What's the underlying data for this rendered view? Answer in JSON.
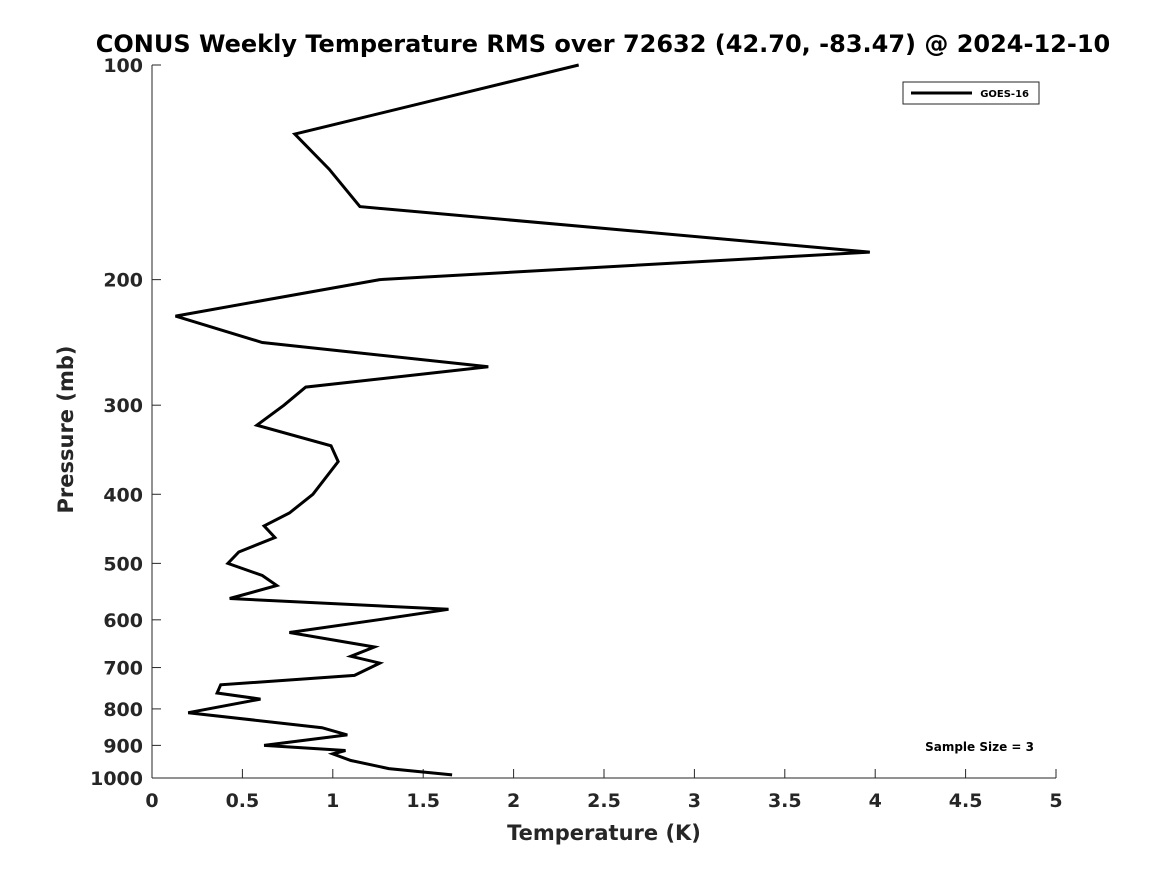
{
  "chart_data": {
    "type": "line",
    "title": "CONUS Weekly Temperature RMS over 72632 (42.70, -83.47) @ 2024-12-10",
    "xlabel": "Temperature (K)",
    "ylabel": "Pressure (mb)",
    "xlim": [
      0,
      5
    ],
    "ylim": [
      1000,
      100
    ],
    "y_scale": "log",
    "y_reversed": true,
    "x_ticks": [
      0,
      0.5,
      1,
      1.5,
      2,
      2.5,
      3,
      3.5,
      4,
      4.5,
      5
    ],
    "x_tick_labels": [
      "0",
      "0.5",
      "1",
      "1.5",
      "2",
      "2.5",
      "3",
      "3.5",
      "4",
      "4.5",
      "5"
    ],
    "y_ticks": [
      100,
      200,
      300,
      400,
      500,
      600,
      700,
      800,
      900,
      1000
    ],
    "y_tick_labels": [
      "100",
      "200",
      "300",
      "400",
      "500",
      "600",
      "700",
      "800",
      "900",
      "1000"
    ],
    "grid": false,
    "legend_position": "top-right",
    "series": [
      {
        "name": "GOES-16",
        "color": "#000000",
        "points": [
          [
            2.36,
            100
          ],
          [
            0.79,
            125
          ],
          [
            0.98,
            140
          ],
          [
            1.15,
            158
          ],
          [
            3.97,
            183
          ],
          [
            1.26,
            200
          ],
          [
            0.13,
            225
          ],
          [
            0.61,
            245
          ],
          [
            1.86,
            265
          ],
          [
            0.85,
            283
          ],
          [
            0.73,
            300
          ],
          [
            0.58,
            320
          ],
          [
            0.99,
            342
          ],
          [
            1.03,
            360
          ],
          [
            0.89,
            400
          ],
          [
            0.76,
            425
          ],
          [
            0.62,
            443
          ],
          [
            0.68,
            460
          ],
          [
            0.48,
            482
          ],
          [
            0.42,
            500
          ],
          [
            0.61,
            520
          ],
          [
            0.69,
            537
          ],
          [
            0.43,
            560
          ],
          [
            1.64,
            580
          ],
          [
            1.25,
            600
          ],
          [
            0.76,
            625
          ],
          [
            1.23,
            655
          ],
          [
            1.1,
            675
          ],
          [
            1.26,
            690
          ],
          [
            1.12,
            718
          ],
          [
            0.38,
            740
          ],
          [
            0.36,
            760
          ],
          [
            0.6,
            775
          ],
          [
            0.2,
            810
          ],
          [
            0.94,
            850
          ],
          [
            1.08,
            870
          ],
          [
            0.62,
            900
          ],
          [
            1.07,
            915
          ],
          [
            1.0,
            925
          ],
          [
            1.1,
            945
          ],
          [
            1.31,
            970
          ],
          [
            1.66,
            990
          ]
        ]
      }
    ],
    "annotation": "Sample Size = 3"
  }
}
